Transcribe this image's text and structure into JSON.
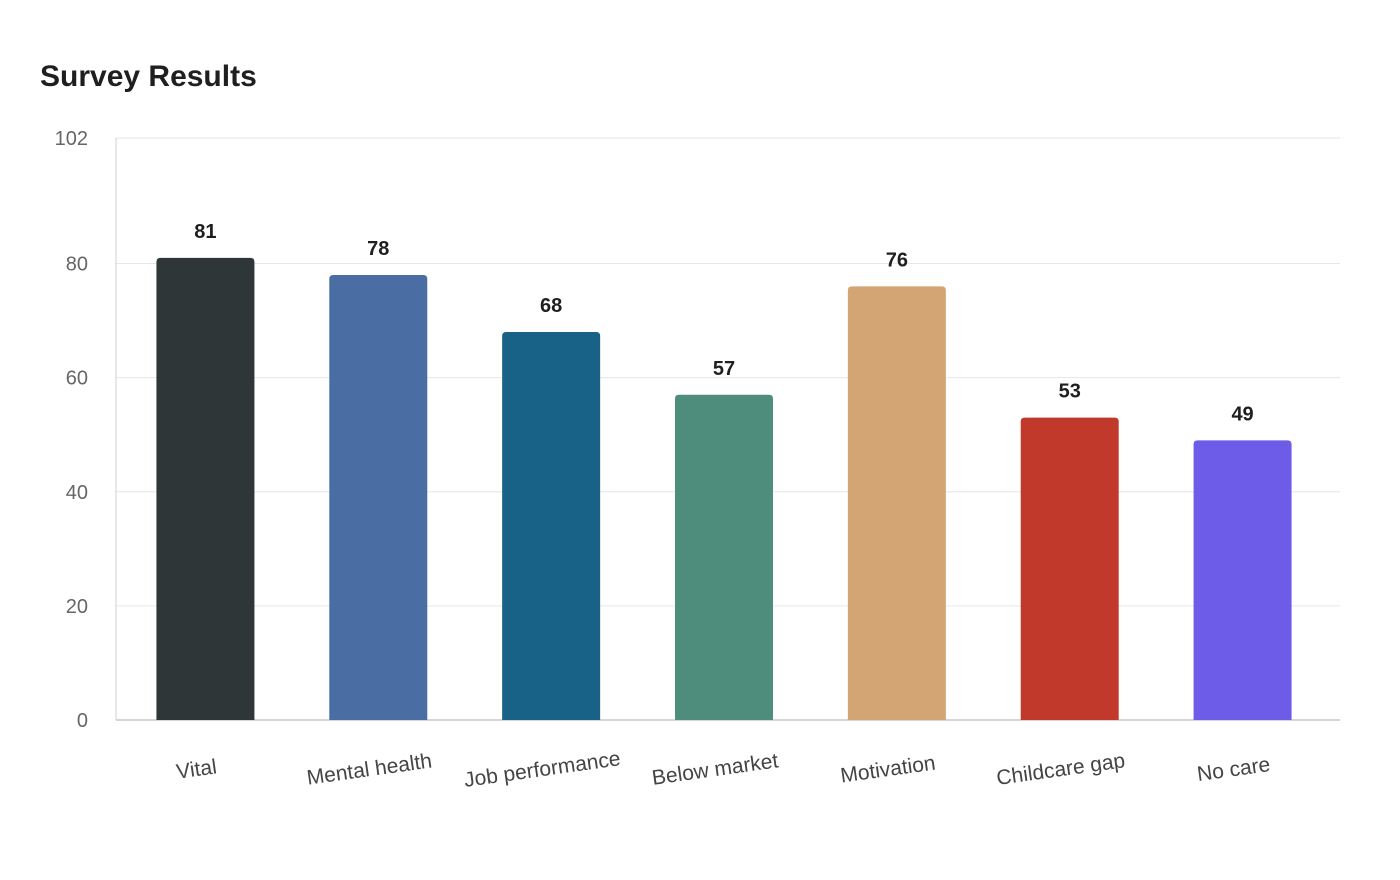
{
  "chart_data": {
    "type": "bar",
    "title": "Survey Results",
    "xlabel": "",
    "ylabel": "",
    "categories": [
      "Vital",
      "Mental health",
      "Job performance",
      "Below market",
      "Motivation",
      "Childcare gap",
      "No care"
    ],
    "values": [
      81,
      78,
      68,
      57,
      76,
      53,
      49
    ],
    "colors": [
      "#2e3638",
      "#4a6ea3",
      "#186187",
      "#4e8c7b",
      "#d4a574",
      "#c0392b",
      "#6c5ce7"
    ],
    "ylim": [
      0,
      102
    ],
    "yticks": [
      0,
      20,
      40,
      60,
      80,
      102
    ],
    "grid": true,
    "legend": "none"
  }
}
